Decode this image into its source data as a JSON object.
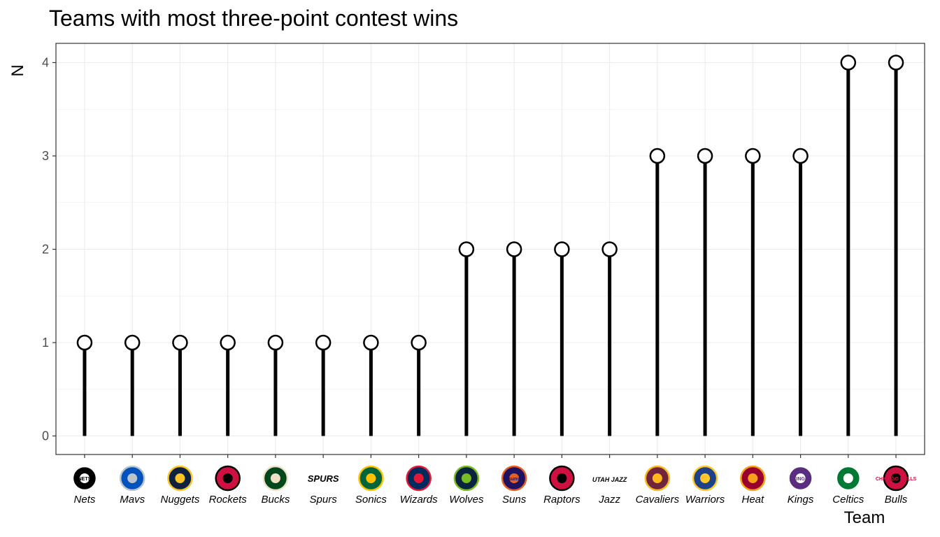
{
  "chart_data": {
    "type": "lollipop",
    "title": "Teams with most three-point contest wins",
    "xlabel": "Team",
    "ylabel": "N",
    "ylim": [
      0,
      4
    ],
    "yticks": [
      0,
      1,
      2,
      3,
      4
    ],
    "grid": true,
    "categories": [
      "Nets",
      "Mavs",
      "Nuggets",
      "Rockets",
      "Bucks",
      "Spurs",
      "Sonics",
      "Wizards",
      "Wolves",
      "Suns",
      "Raptors",
      "Jazz",
      "Cavaliers",
      "Warriors",
      "Heat",
      "Kings",
      "Celtics",
      "Bulls"
    ],
    "values": [
      1,
      1,
      1,
      1,
      1,
      1,
      1,
      1,
      2,
      2,
      2,
      2,
      3,
      3,
      3,
      3,
      4,
      4
    ],
    "logos": [
      {
        "team": "Nets",
        "bg": "#000000",
        "fg": "#ffffff",
        "text": "NETS",
        "icon": "nets-logo-icon"
      },
      {
        "team": "Mavs",
        "bg": "#0053bc",
        "fg": "#bbc4ca",
        "text": "",
        "icon": "mavs-logo-icon"
      },
      {
        "team": "Nuggets",
        "bg": "#0e2240",
        "fg": "#fec524",
        "text": "",
        "icon": "nuggets-logo-icon"
      },
      {
        "team": "Rockets",
        "bg": "#ce1141",
        "fg": "#000000",
        "text": "",
        "icon": "rockets-logo-icon"
      },
      {
        "team": "Bucks",
        "bg": "#00471b",
        "fg": "#eee1c6",
        "text": "",
        "icon": "bucks-logo-icon"
      },
      {
        "team": "Spurs",
        "bg": "#ffffff",
        "fg": "#000000",
        "text": "SPURS",
        "icon": "spurs-logo-icon"
      },
      {
        "team": "Sonics",
        "bg": "#00653a",
        "fg": "#ffc200",
        "text": "",
        "icon": "sonics-logo-icon"
      },
      {
        "team": "Wizards",
        "bg": "#002b5c",
        "fg": "#e31837",
        "text": "",
        "icon": "wizards-logo-icon"
      },
      {
        "team": "Wolves",
        "bg": "#0c2340",
        "fg": "#78be20",
        "text": "",
        "icon": "wolves-logo-icon"
      },
      {
        "team": "Suns",
        "bg": "#1d1160",
        "fg": "#e56020",
        "text": "suns",
        "icon": "suns-logo-icon"
      },
      {
        "team": "Raptors",
        "bg": "#ce1141",
        "fg": "#000000",
        "text": "",
        "icon": "raptors-logo-icon"
      },
      {
        "team": "Jazz",
        "bg": "#ffffff",
        "fg": "#000000",
        "text": "UTAH JAZZ",
        "icon": "jazz-logo-icon"
      },
      {
        "team": "Cavaliers",
        "bg": "#6f263d",
        "fg": "#ffb81c",
        "text": "",
        "icon": "cavaliers-logo-icon"
      },
      {
        "team": "Warriors",
        "bg": "#1d428a",
        "fg": "#ffc72c",
        "text": "",
        "icon": "warriors-logo-icon"
      },
      {
        "team": "Heat",
        "bg": "#98002e",
        "fg": "#f9a01b",
        "text": "",
        "icon": "heat-logo-icon"
      },
      {
        "team": "Kings",
        "bg": "#5a2d81",
        "fg": "#ffffff",
        "text": "KINGS",
        "icon": "kings-logo-icon"
      },
      {
        "team": "Celtics",
        "bg": "#007a33",
        "fg": "#ffffff",
        "text": "",
        "icon": "celtics-logo-icon"
      },
      {
        "team": "Bulls",
        "bg": "#ce1141",
        "fg": "#000000",
        "text": "CHICAGO BULLS",
        "icon": "bulls-logo-icon"
      }
    ],
    "colors": {
      "stem": "#000000",
      "point_fill": "#ffffff",
      "point_stroke": "#000000",
      "grid": "#ebebeb",
      "panel_border": "#333333",
      "tick_text": "#4d4d4d"
    }
  }
}
